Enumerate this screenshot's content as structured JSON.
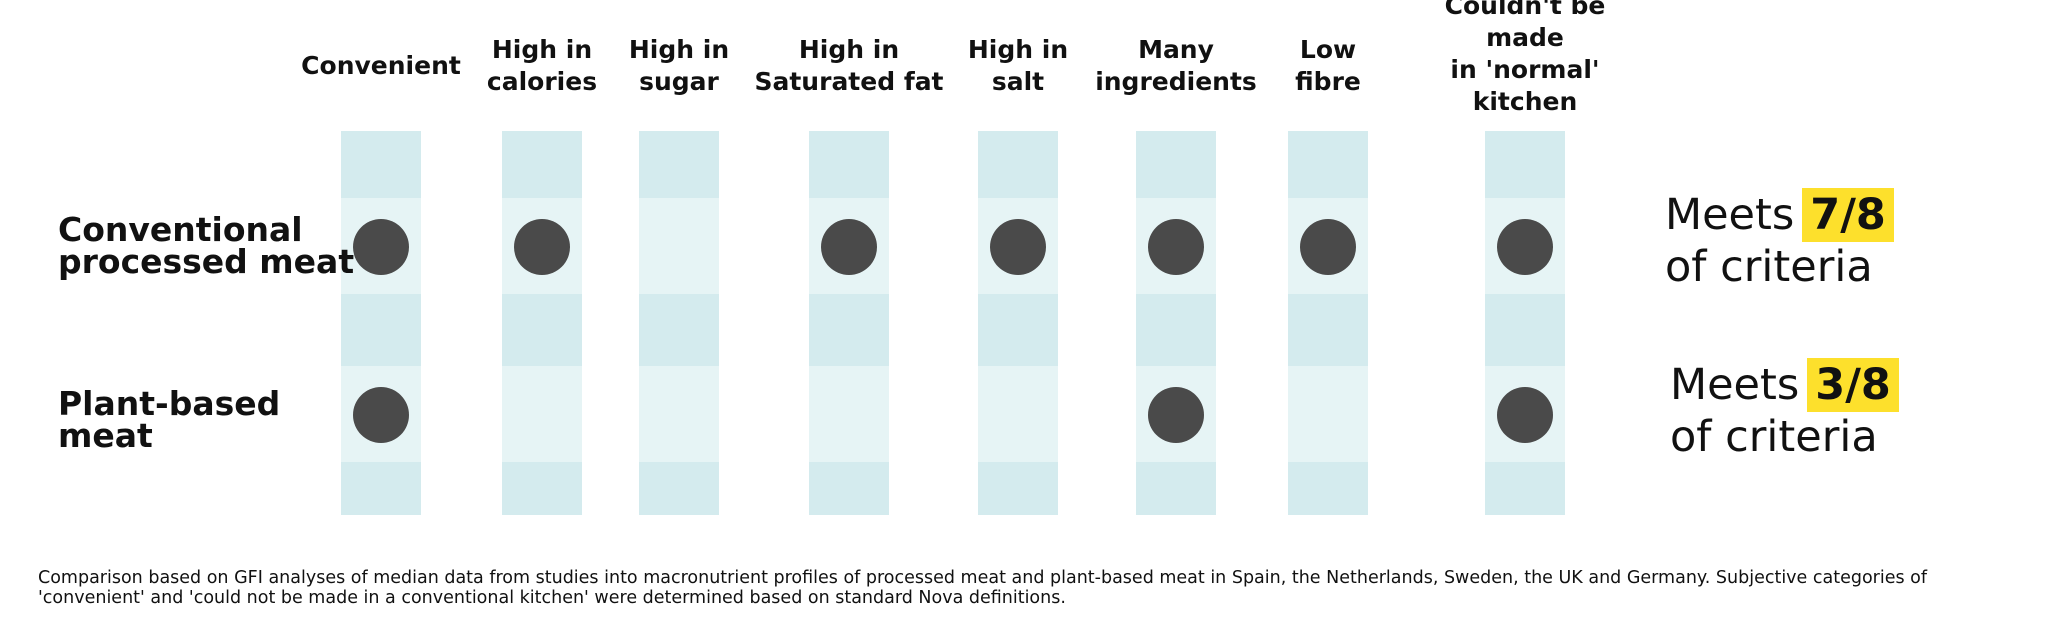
{
  "chart_data": {
    "type": "table",
    "columns": [
      "Convenient",
      "High in\ncalories",
      "High in\nsugar",
      "High in\nSaturated fat",
      "High in\nsalt",
      "Many\ningredients",
      "Low\nfibre",
      "Couldn't be made\nin 'normal' kitchen"
    ],
    "rows": [
      {
        "label": "Conventional\nprocessed meat",
        "values": [
          1,
          1,
          0,
          1,
          1,
          1,
          1,
          1
        ],
        "meets_prefix": "Meets",
        "score": "7/8",
        "meets_suffix": "of criteria"
      },
      {
        "label": "Plant-based\nmeat",
        "values": [
          1,
          0,
          0,
          0,
          0,
          1,
          0,
          1
        ],
        "meets_prefix": "Meets",
        "score": "3/8",
        "meets_suffix": "of criteria"
      }
    ],
    "colors": {
      "dot": "#4a4a4a",
      "column": "#d4ebee",
      "row_band": "#e6f4f5",
      "highlight": "#fde02c"
    }
  },
  "footnote": "Comparison based on GFI analyses of median data from studies into macronutrient profiles of processed meat and plant-based meat in Spain, the Netherlands, Sweden, the UK and Germany. Subjective categories of 'convenient' and 'could not be made in a conventional kitchen' were determined based on standard Nova definitions."
}
